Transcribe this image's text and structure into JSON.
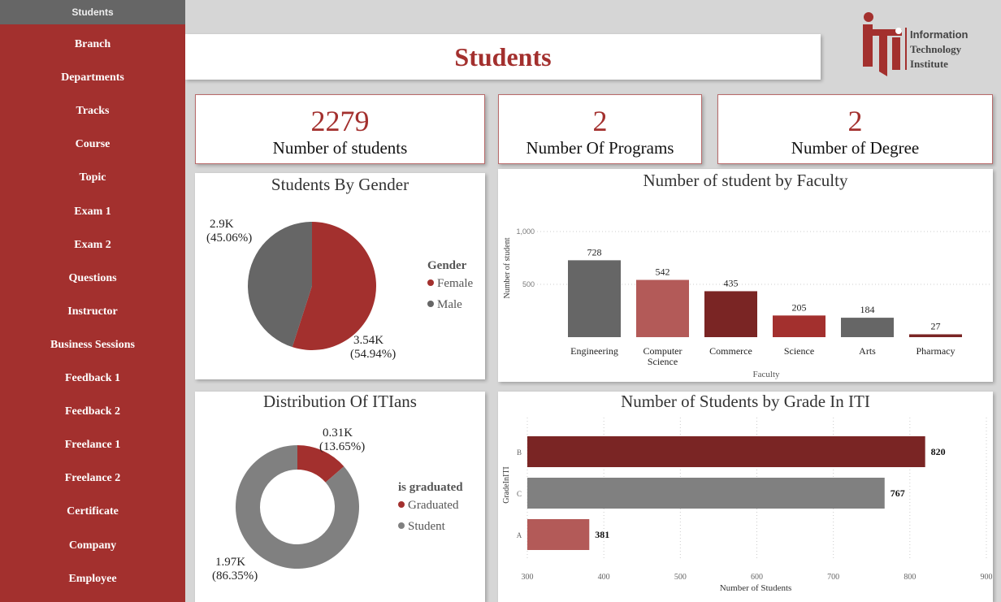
{
  "sidebar": {
    "active": "Students",
    "items": [
      "Branch",
      "Departments",
      "Tracks",
      "Course",
      "Topic",
      "Exam 1",
      "Exam 2",
      "Questions",
      "Instructor",
      "Business Sessions",
      "Feedback 1",
      "Feedback 2",
      "Freelance 1",
      "Freelance 2",
      "Certificate",
      "Company",
      "Employee"
    ]
  },
  "header": {
    "title": "Students",
    "logo_text": [
      "Information",
      "Technology",
      "Institute"
    ]
  },
  "kpis": [
    {
      "value": "2279",
      "label": "Number of students"
    },
    {
      "value": "2",
      "label": "Number Of Programs"
    },
    {
      "value": "2",
      "label": "Number of Degree"
    }
  ],
  "colors": {
    "accent": "#a3302e",
    "gray": "#666666",
    "light_red": "#b35a58",
    "dark_red": "#7a2524"
  },
  "chart_data": [
    {
      "type": "pie",
      "title": "Students By Gender",
      "legend_title": "Gender",
      "legend": "right",
      "slices": [
        {
          "name": "Female",
          "value": 3540,
          "label": "3.54K",
          "pct": "(54.94%)",
          "color": "#a3302e"
        },
        {
          "name": "Male",
          "value": 2900,
          "label": "2.9K",
          "pct": "(45.06%)",
          "color": "#666666"
        }
      ]
    },
    {
      "type": "bar",
      "title": "Number of student by Faculty",
      "xlabel": "Faculty",
      "ylabel": "Number of student",
      "ylim": [
        0,
        1000
      ],
      "yticks": [
        "500",
        "1,000"
      ],
      "grid": true,
      "categories": [
        "Engineering",
        "Computer Science",
        "Commerce",
        "Science",
        "Arts",
        "Pharmacy"
      ],
      "values": [
        728,
        542,
        435,
        205,
        184,
        27
      ],
      "colors": [
        "#666666",
        "#b35a58",
        "#7a2524",
        "#a3302e",
        "#666666",
        "#7a2524"
      ]
    },
    {
      "type": "pie",
      "subtype": "donut",
      "title": "Distribution Of ITIans",
      "legend_title": "is graduated",
      "legend": "right",
      "slices": [
        {
          "name": "Graduated",
          "value": 310,
          "label": "0.31K",
          "pct": "(13.65%)",
          "color": "#a3302e"
        },
        {
          "name": "Student",
          "value": 1970,
          "label": "1.97K",
          "pct": "(86.35%)",
          "color": "#808080"
        }
      ]
    },
    {
      "type": "bar",
      "orientation": "horizontal",
      "title": "Number of Students by Grade In ITI",
      "xlabel": "Number of Students",
      "ylabel": "GradeInITI",
      "xlim": [
        300,
        900
      ],
      "xticks": [
        300,
        400,
        500,
        600,
        700,
        800,
        900
      ],
      "grid": true,
      "categories": [
        "B",
        "C",
        "A"
      ],
      "values": [
        820,
        767,
        381
      ],
      "colors": [
        "#7a2524",
        "#808080",
        "#b35a58"
      ]
    }
  ]
}
